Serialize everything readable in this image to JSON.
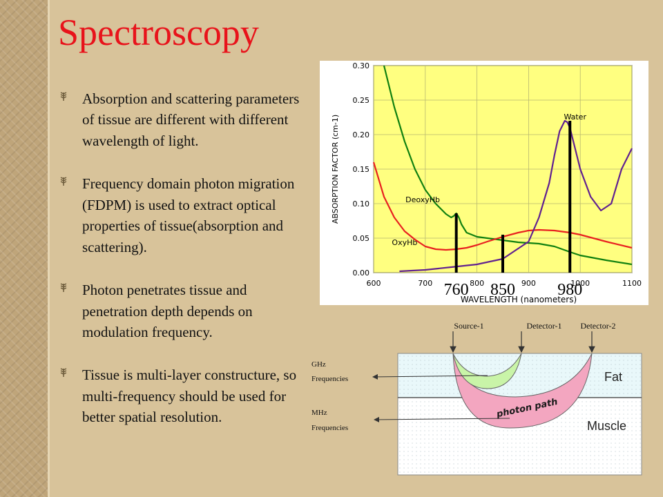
{
  "slide": {
    "title": "Spectroscopy",
    "bullets": [
      "Absorption and scattering parameters of tissue are different with different wavelength of light.",
      "Frequency domain photon migration (FDPM) is used to extract optical properties of tissue(absorption and scattering).",
      "Photon penetrates tissue and penetration depth depends on modulation frequency.",
      "Tissue is multi-layer constructure, so multi-frequency should be used for better spatial resolution."
    ],
    "bullet_icon": "wheat-sprig-icon"
  },
  "chart_data": {
    "type": "line",
    "title": "",
    "xlabel": "WAVELENGTH (nanometers)",
    "ylabel": "ABSORPTION FACTOR (cm-1)",
    "xlim": [
      600,
      1100
    ],
    "ylim": [
      0,
      0.3
    ],
    "x_ticks": [
      "600",
      "700",
      "800",
      "900",
      "1000",
      "1100"
    ],
    "y_ticks": [
      "0.00",
      "0.05",
      "0.10",
      "0.15",
      "0.20",
      "0.25",
      "0.30"
    ],
    "grid": true,
    "plot_background": "#FFFF80",
    "series": [
      {
        "name": "DeoxyHb",
        "color": "#108010",
        "x": [
          620,
          640,
          660,
          680,
          700,
          720,
          740,
          750,
          755,
          760,
          765,
          770,
          780,
          800,
          820,
          850,
          880,
          900,
          920,
          950,
          980,
          1000,
          1050,
          1100
        ],
        "y": [
          0.3,
          0.24,
          0.19,
          0.15,
          0.12,
          0.1,
          0.085,
          0.08,
          0.082,
          0.086,
          0.08,
          0.07,
          0.058,
          0.052,
          0.05,
          0.047,
          0.044,
          0.043,
          0.042,
          0.038,
          0.03,
          0.025,
          0.018,
          0.012
        ]
      },
      {
        "name": "OxyHb",
        "color": "#E82020",
        "x": [
          600,
          620,
          640,
          660,
          680,
          700,
          720,
          740,
          760,
          780,
          800,
          820,
          850,
          880,
          900,
          920,
          950,
          980,
          1000,
          1050,
          1100
        ],
        "y": [
          0.16,
          0.11,
          0.08,
          0.06,
          0.048,
          0.038,
          0.034,
          0.033,
          0.034,
          0.036,
          0.04,
          0.045,
          0.052,
          0.058,
          0.061,
          0.062,
          0.061,
          0.058,
          0.055,
          0.045,
          0.036
        ]
      },
      {
        "name": "Water",
        "color": "#602090",
        "x": [
          650,
          700,
          750,
          800,
          850,
          900,
          920,
          940,
          950,
          960,
          970,
          975,
          980,
          990,
          1000,
          1020,
          1040,
          1060,
          1080,
          1100
        ],
        "y": [
          0.002,
          0.004,
          0.008,
          0.012,
          0.02,
          0.045,
          0.08,
          0.13,
          0.17,
          0.205,
          0.22,
          0.218,
          0.21,
          0.18,
          0.15,
          0.11,
          0.09,
          0.1,
          0.15,
          0.18
        ]
      }
    ],
    "annotations": [
      {
        "text": "DeoxyHb",
        "x": 695,
        "y": 0.102
      },
      {
        "text": "OxyHb",
        "x": 660,
        "y": 0.04
      },
      {
        "text": "Water",
        "x": 990,
        "y": 0.222
      }
    ],
    "markers": [
      {
        "x": 760,
        "y": 0.086,
        "label": "760"
      },
      {
        "x": 850,
        "y": 0.055,
        "label": "850"
      },
      {
        "x": 980,
        "y": 0.22,
        "label": "980"
      }
    ]
  },
  "diagram": {
    "source_label": "Source-1",
    "detector1_label": "Detector-1",
    "detector2_label": "Detector-2",
    "ghz_label_line1": "GHz",
    "ghz_label_line2": "Frequencies",
    "mhz_label_line1": "MHz",
    "mhz_label_line2": "Frequencies",
    "fat_label": "Fat",
    "muscle_label": "Muscle",
    "photon_path_label": "photon path",
    "colors": {
      "fat": "#E9F8FA",
      "muscle": "#FFFFFF",
      "ghz_path": "#C9F4A8",
      "mhz_path": "#F3A6C0"
    }
  }
}
